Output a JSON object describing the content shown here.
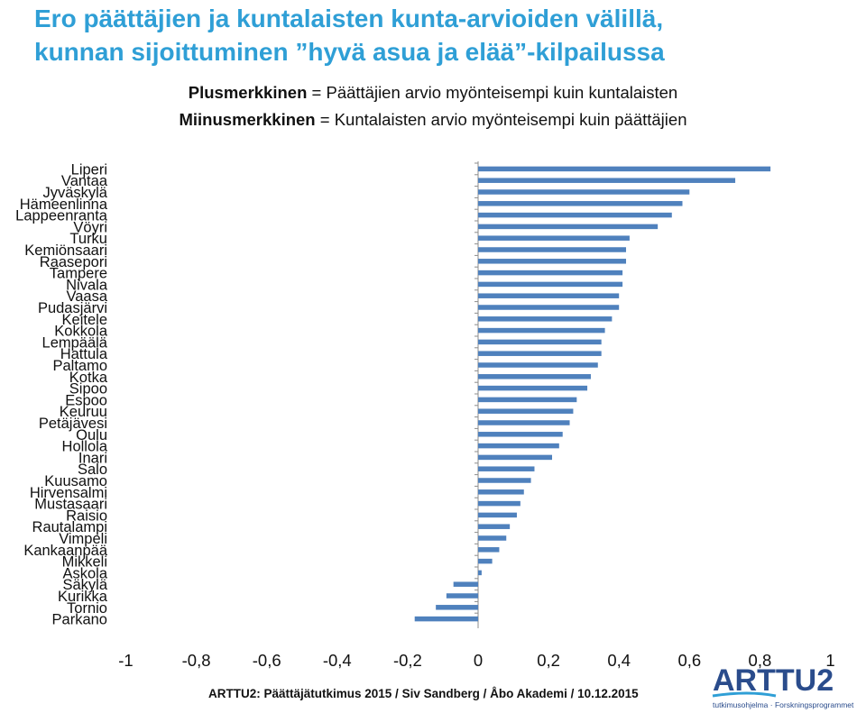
{
  "title": {
    "line1": "Ero päättäjien ja kuntalaisten kunta-arvioiden välillä,",
    "line2": "kunnan sijoittuminen ”hyvä asua ja elää”-kilpailussa"
  },
  "subtitle": {
    "plus_label": "Plusmerkkinen",
    "plus_text": " = Päättäjien arvio myönteisempi kuin kuntalaisten",
    "minus_label": "Miinusmerkkinen",
    "minus_text": " = Kuntalaisten arvio myönteisempi kuin päättäjien"
  },
  "colors": {
    "title": "#2f9fd6",
    "bar": "#4f81bd",
    "axis": "#8c8c8c"
  },
  "chart_data": {
    "type": "bar",
    "orientation": "horizontal",
    "categories": [
      "Liperi",
      "Vantaa",
      "Jyväskylä",
      "Hämeenlinna",
      "Lappeenranta",
      "Vöyri",
      "Turku",
      "Kemiönsaari",
      "Raasepori",
      "Tampere",
      "Nivala",
      "Vaasa",
      "Pudasjärvi",
      "Keitele",
      "Kokkola",
      "Lempäälä",
      "Hattula",
      "Paltamo",
      "Kotka",
      "Sipoo",
      "Espoo",
      "Keuruu",
      "Petäjävesi",
      "Oulu",
      "Hollola",
      "Inari",
      "Salo",
      "Kuusamo",
      "Hirvensalmi",
      "Mustasaari",
      "Raisio",
      "Rautalampi",
      "Vimpeli",
      "Kankaanpää",
      "Mikkeli",
      "Askola",
      "Säkylä",
      "Kurikka",
      "Tornio",
      "Parkano"
    ],
    "values": [
      0.83,
      0.73,
      0.6,
      0.58,
      0.55,
      0.51,
      0.43,
      0.42,
      0.42,
      0.41,
      0.41,
      0.4,
      0.4,
      0.38,
      0.36,
      0.35,
      0.35,
      0.34,
      0.32,
      0.31,
      0.28,
      0.27,
      0.26,
      0.24,
      0.23,
      0.21,
      0.16,
      0.15,
      0.13,
      0.12,
      0.11,
      0.09,
      0.08,
      0.06,
      0.04,
      0.01,
      -0.07,
      -0.09,
      -0.12,
      -0.18
    ],
    "xlim": [
      -1,
      1
    ],
    "xticks": [
      "-1",
      "-0,8",
      "-0,6",
      "-0,4",
      "-0,2",
      "0",
      "0,2",
      "0,4",
      "0,6",
      "0,8",
      "1"
    ],
    "grid": false
  },
  "footer": "ARTTU2: Päättäjätutkimus 2015 / Siv Sandberg / Åbo Akademi / 10.12.2015",
  "logo": {
    "name": "ARTTU2",
    "tagline": "tutkimusohjelma · Forskningsprogrammet"
  }
}
